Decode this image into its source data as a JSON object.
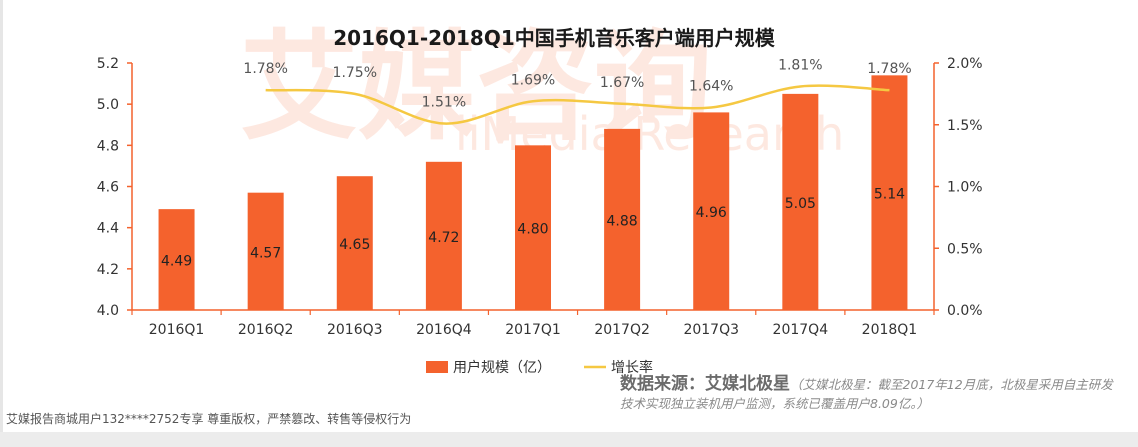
{
  "colors": {
    "bar": "#f4622d",
    "line": "#f5c842",
    "axis_right": "#f4622d",
    "axis_left": "#f4622d",
    "watermark": "#f4622d"
  },
  "watermark": {
    "logo": "艾媒咨询",
    "text": "iiMedia Research"
  },
  "chart_data": {
    "type": "bar",
    "title": "2016Q1-2018Q1中国手机音乐客户端用户规模",
    "categories": [
      "2016Q1",
      "2016Q2",
      "2016Q3",
      "2016Q4",
      "2017Q1",
      "2017Q2",
      "2017Q3",
      "2017Q4",
      "2018Q1"
    ],
    "series": [
      {
        "name": "用户规模（亿）",
        "type": "bar",
        "axis": "left",
        "values": [
          4.49,
          4.57,
          4.65,
          4.72,
          4.8,
          4.88,
          4.96,
          5.05,
          5.14
        ],
        "labels": [
          "4.49",
          "4.57",
          "4.65",
          "4.72",
          "4.80",
          "4.88",
          "4.96",
          "5.05",
          "5.14"
        ]
      },
      {
        "name": "增长率",
        "type": "line",
        "axis": "right",
        "values": [
          1.78,
          1.75,
          1.51,
          1.69,
          1.67,
          1.64,
          1.81,
          1.78
        ],
        "x": [
          "2016Q2",
          "2016Q3",
          "2016Q4",
          "2017Q1",
          "2017Q2",
          "2017Q3",
          "2017Q4",
          "2018Q1"
        ],
        "labels": [
          "1.78%",
          "1.75%",
          "1.51%",
          "1.69%",
          "1.67%",
          "1.64%",
          "1.81%",
          "1.78%"
        ]
      }
    ],
    "y_left": {
      "lim": [
        4.0,
        5.2
      ],
      "ticks": [
        "4.0",
        "4.2",
        "4.4",
        "4.6",
        "4.8",
        "5.0",
        "5.2"
      ]
    },
    "y_right": {
      "lim": [
        0.0,
        2.0
      ],
      "ticks": [
        "0.0%",
        "0.5%",
        "1.0%",
        "1.5%",
        "2.0%"
      ]
    },
    "legend": {
      "position": "bottom",
      "items": [
        "用户规模（亿）",
        "增长率"
      ]
    },
    "grid": false
  },
  "source": {
    "label": "数据来源：艾媒北极星",
    "note": "（艾媒北极星：截至2017年12月底，北极星采用自主研发技术实现独立装机用户监测，系统已覆盖用户8.09亿。）"
  },
  "copyright": "艾媒报告商城用户132****2752专享 尊重版权，严禁篡改、转售等侵权行为"
}
